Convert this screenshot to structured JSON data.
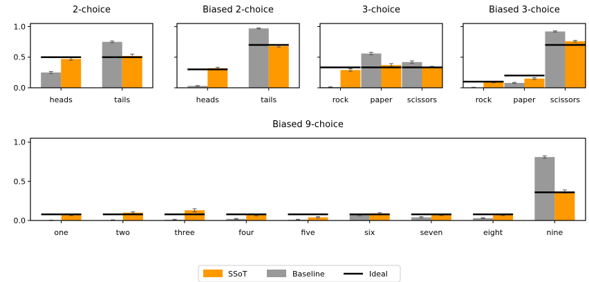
{
  "colors": {
    "ssot": "#ff9900",
    "baseline": "#999999",
    "ideal": "#000000",
    "errorbar": "#555555"
  },
  "chart_data": [
    {
      "type": "bar",
      "title": "2-choice",
      "categories": [
        "heads",
        "tails"
      ],
      "ylim": [
        0,
        1.05
      ],
      "yticks": [
        "0.0",
        "0.5",
        "1.0"
      ],
      "series": [
        {
          "name": "Baseline",
          "values": [
            0.25,
            0.75
          ],
          "errors": [
            0.015,
            0.015
          ]
        },
        {
          "name": "SSoT",
          "values": [
            0.47,
            0.52
          ],
          "errors": [
            0.02,
            0.03
          ]
        },
        {
          "name": "Ideal",
          "values": [
            0.5,
            0.5
          ]
        }
      ]
    },
    {
      "type": "bar",
      "title": "Biased 2-choice",
      "categories": [
        "heads",
        "tails"
      ],
      "ylim": [
        0,
        1.05
      ],
      "yticks": [],
      "series": [
        {
          "name": "Baseline",
          "values": [
            0.03,
            0.97
          ],
          "errors": [
            0.005,
            0.008
          ]
        },
        {
          "name": "SSoT",
          "values": [
            0.32,
            0.68
          ],
          "errors": [
            0.015,
            0.015
          ]
        },
        {
          "name": "Ideal",
          "values": [
            0.3,
            0.7
          ]
        }
      ]
    },
    {
      "type": "bar",
      "title": "3-choice",
      "categories": [
        "rock",
        "paper",
        "scissors"
      ],
      "ylim": [
        0,
        1.05
      ],
      "yticks": [],
      "series": [
        {
          "name": "Baseline",
          "values": [
            0.01,
            0.56,
            0.42
          ],
          "errors": [
            0.005,
            0.02,
            0.02
          ]
        },
        {
          "name": "SSoT",
          "values": [
            0.29,
            0.37,
            0.34
          ],
          "errors": [
            0.02,
            0.025,
            0.01
          ]
        },
        {
          "name": "Ideal",
          "values": [
            0.333,
            0.333,
            0.333
          ]
        }
      ]
    },
    {
      "type": "bar",
      "title": "Biased 3-choice",
      "categories": [
        "rock",
        "paper",
        "scissors"
      ],
      "ylim": [
        0,
        1.05
      ],
      "yticks": [],
      "series": [
        {
          "name": "Baseline",
          "values": [
            0.005,
            0.08,
            0.92
          ],
          "errors": [
            0.003,
            0.008,
            0.01
          ]
        },
        {
          "name": "SSoT",
          "values": [
            0.09,
            0.15,
            0.76
          ],
          "errors": [
            0.008,
            0.015,
            0.015
          ]
        },
        {
          "name": "Ideal",
          "values": [
            0.1,
            0.2,
            0.7
          ]
        }
      ]
    },
    {
      "type": "bar",
      "title": "Biased 9-choice",
      "categories": [
        "one",
        "two",
        "three",
        "four",
        "five",
        "six",
        "seven",
        "eight",
        "nine"
      ],
      "ylim": [
        0,
        1.05
      ],
      "yticks": [
        "0.0",
        "0.5",
        "1.0"
      ],
      "series": [
        {
          "name": "Baseline",
          "values": [
            0.003,
            0.005,
            0.01,
            0.02,
            0.01,
            0.07,
            0.04,
            0.03,
            0.81
          ],
          "errors": [
            0.002,
            0.003,
            0.005,
            0.005,
            0.005,
            0.01,
            0.008,
            0.005,
            0.015
          ]
        },
        {
          "name": "SSoT",
          "values": [
            0.07,
            0.1,
            0.13,
            0.07,
            0.04,
            0.09,
            0.07,
            0.07,
            0.37
          ],
          "errors": [
            0.008,
            0.012,
            0.02,
            0.01,
            0.008,
            0.01,
            0.008,
            0.008,
            0.02
          ]
        },
        {
          "name": "Ideal",
          "values": [
            0.0778,
            0.0778,
            0.0778,
            0.0778,
            0.0778,
            0.0778,
            0.0778,
            0.0778,
            0.36
          ]
        }
      ]
    }
  ],
  "legend": {
    "placement": "bottom-center",
    "entries": [
      {
        "label": "SSoT",
        "kind": "patch",
        "color": "#ff9900"
      },
      {
        "label": "Baseline",
        "kind": "patch",
        "color": "#999999"
      },
      {
        "label": "Ideal",
        "kind": "line",
        "color": "#000000"
      }
    ]
  }
}
